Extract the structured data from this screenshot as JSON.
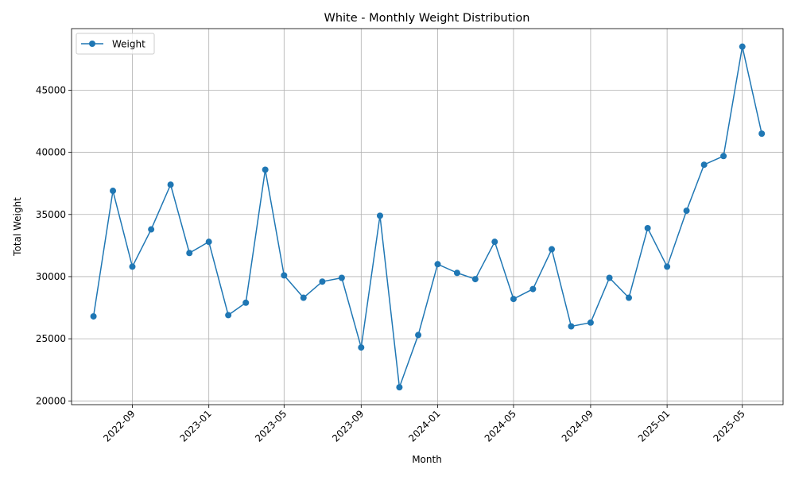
{
  "chart_data": {
    "type": "line",
    "title": "White - Monthly Weight Distribution",
    "xlabel": "Month",
    "ylabel": "Total Weight",
    "grid": true,
    "legend_placement": "top-left",
    "x_ticks": [
      "2022-09",
      "2023-01",
      "2023-05",
      "2023-09",
      "2024-01",
      "2024-05",
      "2024-09",
      "2025-01",
      "2025-05"
    ],
    "y_ticks": [
      20000,
      25000,
      30000,
      35000,
      40000,
      45000
    ],
    "ylim": [
      19700,
      49950
    ],
    "xlim": [
      "2022-05-27",
      "2025-07-05"
    ],
    "color": "#1f77b4",
    "series": [
      {
        "name": "Weight",
        "x": [
          "2022-07-01",
          "2022-08-01",
          "2022-09-01",
          "2022-10-01",
          "2022-11-01",
          "2022-12-01",
          "2023-01-01",
          "2023-02-01",
          "2023-03-01",
          "2023-04-01",
          "2023-05-01",
          "2023-06-01",
          "2023-07-01",
          "2023-08-01",
          "2023-09-01",
          "2023-10-01",
          "2023-11-01",
          "2023-12-01",
          "2024-01-01",
          "2024-02-01",
          "2024-03-01",
          "2024-04-01",
          "2024-05-01",
          "2024-06-01",
          "2024-07-01",
          "2024-08-01",
          "2024-09-01",
          "2024-10-01",
          "2024-11-01",
          "2024-12-01",
          "2025-01-01",
          "2025-02-01",
          "2025-03-01",
          "2025-04-01",
          "2025-05-01",
          "2025-06-01"
        ],
        "values": [
          26800,
          36900,
          30800,
          33800,
          37400,
          31900,
          32800,
          26900,
          27900,
          38600,
          30100,
          28300,
          29600,
          29900,
          24300,
          34900,
          21100,
          25300,
          31000,
          30300,
          29800,
          32800,
          28200,
          29000,
          32200,
          26000,
          26300,
          29900,
          28300,
          33900,
          30800,
          35300,
          39000,
          39700,
          48500,
          41500
        ]
      }
    ]
  }
}
